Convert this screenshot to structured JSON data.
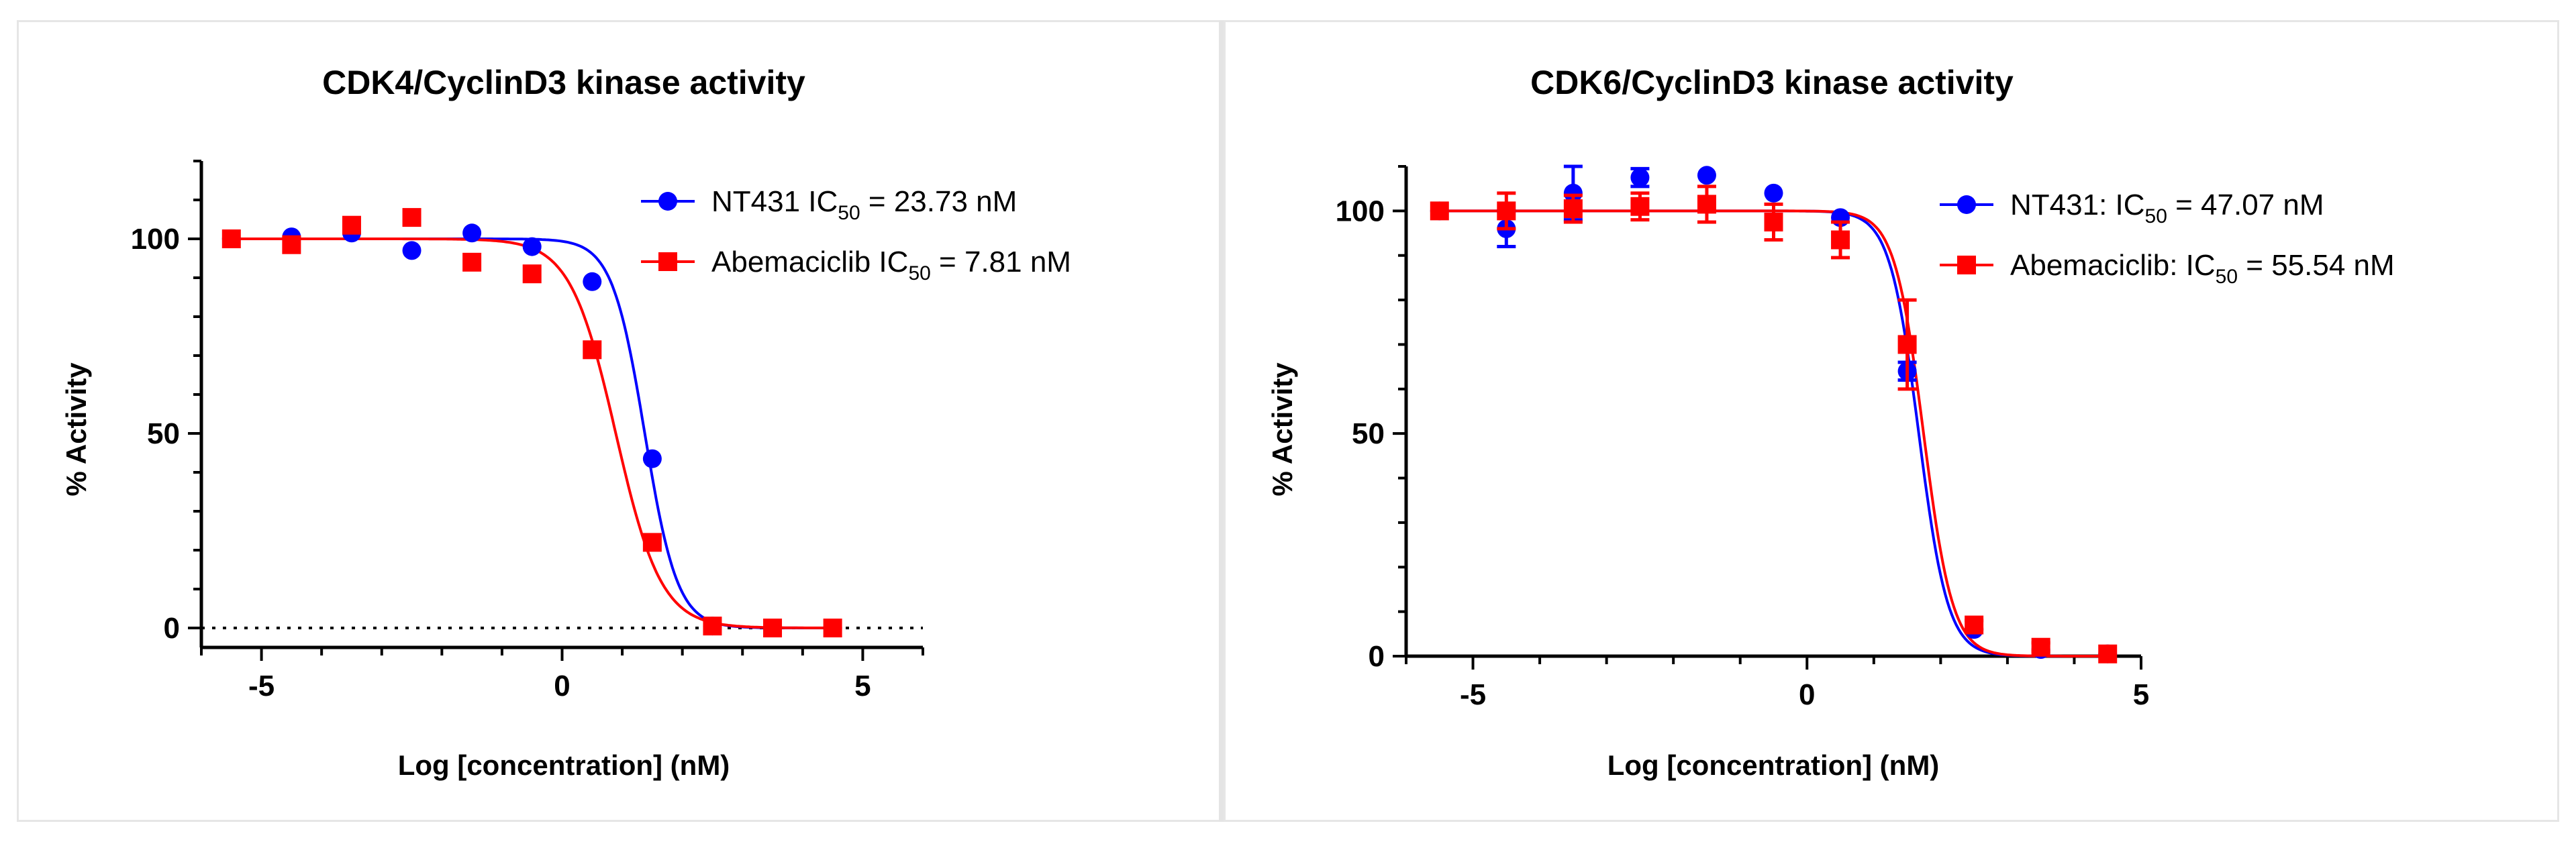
{
  "chart_data": [
    {
      "type": "scatter",
      "title": "CDK4/CyclinD3 kinase activity",
      "xlabel": "Log [concentration] (nM)",
      "ylabel": "% Activity",
      "xlim": [
        -6,
        6
      ],
      "ylim": [
        -5,
        120
      ],
      "xticks": [
        -5,
        0,
        5
      ],
      "yticks": [
        0,
        50,
        100
      ],
      "xtick_labels": [
        "-5",
        "0",
        "5"
      ],
      "ytick_labels": [
        "0",
        "50",
        "100"
      ],
      "reference_line": {
        "y": 0,
        "style": "dotted"
      },
      "legend_position": "top-right",
      "series": [
        {
          "name": "NT431",
          "label_main": "NT431 IC",
          "label_sub": "50",
          "label_value": " = 23.73 nM",
          "color": "#0000ff",
          "marker": "circle",
          "points": [
            {
              "x": -5.5,
              "y": 100
            },
            {
              "x": -4.5,
              "y": 100.5
            },
            {
              "x": -3.5,
              "y": 101.5
            },
            {
              "x": -2.5,
              "y": 97
            },
            {
              "x": -1.5,
              "y": 101.5
            },
            {
              "x": -0.5,
              "y": 98
            },
            {
              "x": 0.5,
              "y": 89
            },
            {
              "x": 1.5,
              "y": 43.5
            },
            {
              "x": 2.5,
              "y": 0.5
            },
            {
              "x": 3.5,
              "y": 0
            },
            {
              "x": 4.5,
              "y": 0
            }
          ],
          "fit": {
            "top": 100,
            "bottom": 0,
            "logIC50": 1.375,
            "hill": 1.6
          }
        },
        {
          "name": "Abemaciclib",
          "label_main": "Abemaciclib IC",
          "label_sub": "50",
          "label_value": " = 7.81 nM",
          "color": "#ff0000",
          "marker": "square",
          "points": [
            {
              "x": -5.5,
              "y": 100
            },
            {
              "x": -4.5,
              "y": 98.5
            },
            {
              "x": -3.5,
              "y": 103.5
            },
            {
              "x": -2.5,
              "y": 105.5
            },
            {
              "x": -1.5,
              "y": 94
            },
            {
              "x": -0.5,
              "y": 91
            },
            {
              "x": 0.5,
              "y": 71.5
            },
            {
              "x": 1.5,
              "y": 22
            },
            {
              "x": 2.5,
              "y": 0.5
            },
            {
              "x": 3.5,
              "y": 0
            },
            {
              "x": 4.5,
              "y": 0
            }
          ],
          "fit": {
            "top": 100,
            "bottom": 0,
            "logIC50": 0.893,
            "hill": 1.15
          }
        }
      ]
    },
    {
      "type": "scatter",
      "title": "CDK6/CyclinD3 kinase activity",
      "xlabel": "Log [concentration] (nM)",
      "ylabel": "% Activity",
      "xlim": [
        -6,
        5
      ],
      "ylim": [
        0,
        110
      ],
      "xticks": [
        -5,
        0,
        5
      ],
      "yticks": [
        0,
        50,
        100
      ],
      "xtick_labels": [
        "-5",
        "0",
        "5"
      ],
      "ytick_labels": [
        "0",
        "50",
        "100"
      ],
      "legend_position": "top-right",
      "series": [
        {
          "name": "NT431",
          "label_main": "NT431: IC",
          "label_sub": "50",
          "label_value": " = 47.07 nM",
          "color": "#0000ff",
          "marker": "circle",
          "points": [
            {
              "x": -5.5,
              "y": 100,
              "err": 0
            },
            {
              "x": -4.5,
              "y": 96,
              "err": 4
            },
            {
              "x": -3.5,
              "y": 104,
              "err": 6
            },
            {
              "x": -2.5,
              "y": 107.5,
              "err": 2
            },
            {
              "x": -1.5,
              "y": 108,
              "err": 0
            },
            {
              "x": -0.5,
              "y": 104,
              "err": 0
            },
            {
              "x": 0.5,
              "y": 98.5,
              "err": 0
            },
            {
              "x": 1.5,
              "y": 64,
              "err": 2
            },
            {
              "x": 2.5,
              "y": 6,
              "err": 0
            },
            {
              "x": 3.5,
              "y": 1.5,
              "err": 0
            },
            {
              "x": 4.5,
              "y": 0.5,
              "err": 0
            }
          ],
          "fit": {
            "top": 100,
            "bottom": 0,
            "logIC50": 1.673,
            "hill": 2.0
          }
        },
        {
          "name": "Abemaciclib",
          "label_main": "Abemaciclib: IC",
          "label_sub": "50",
          "label_value": " = 55.54 nM",
          "color": "#ff0000",
          "marker": "square",
          "points": [
            {
              "x": -5.5,
              "y": 100,
              "err": 0
            },
            {
              "x": -4.5,
              "y": 100,
              "err": 4
            },
            {
              "x": -3.5,
              "y": 100.5,
              "err": 3
            },
            {
              "x": -2.5,
              "y": 101,
              "err": 3
            },
            {
              "x": -1.5,
              "y": 101.5,
              "err": 4
            },
            {
              "x": -0.5,
              "y": 97.5,
              "err": 4
            },
            {
              "x": 0.5,
              "y": 93.5,
              "err": 4
            },
            {
              "x": 1.5,
              "y": 70,
              "err": 10
            },
            {
              "x": 2.5,
              "y": 7,
              "err": 1
            },
            {
              "x": 3.5,
              "y": 2,
              "err": 1
            },
            {
              "x": 4.5,
              "y": 0.5,
              "err": 0
            }
          ],
          "fit": {
            "top": 100,
            "bottom": 0,
            "logIC50": 1.745,
            "hill": 2.0
          }
        }
      ]
    }
  ]
}
